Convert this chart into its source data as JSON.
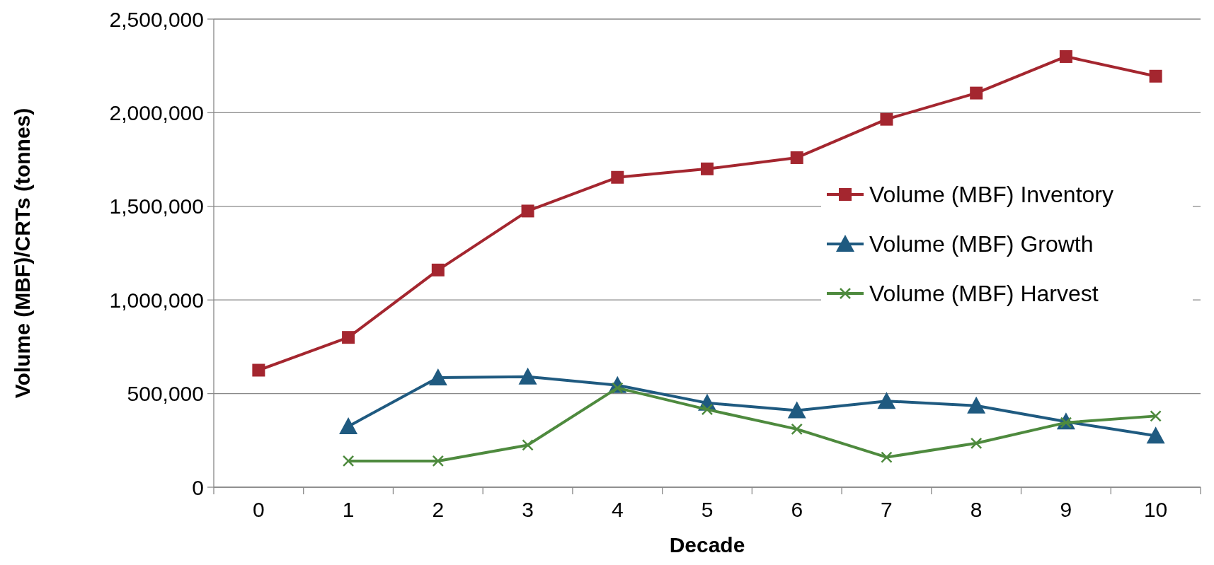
{
  "chart_data": {
    "type": "line",
    "xlabel": "Decade",
    "ylabel": "Volume (MBF)/CRTs (tonnes)",
    "categories": [
      "0",
      "1",
      "2",
      "3",
      "4",
      "5",
      "6",
      "7",
      "8",
      "9",
      "10"
    ],
    "ylim": [
      0,
      2500000
    ],
    "yticks": [
      {
        "value": 0,
        "label": "0"
      },
      {
        "value": 500000,
        "label": "500,000"
      },
      {
        "value": 1000000,
        "label": "1,000,000"
      },
      {
        "value": 1500000,
        "label": "1,500,000"
      },
      {
        "value": 2000000,
        "label": "2,000,000"
      },
      {
        "value": 2500000,
        "label": "2,500,000"
      }
    ],
    "grid": "y",
    "legend": "right",
    "series": [
      {
        "name": "Volume (MBF) Inventory",
        "color": "#a4262f",
        "marker": "square",
        "values": [
          625000,
          800000,
          1160000,
          1475000,
          1655000,
          1700000,
          1760000,
          1965000,
          2105000,
          2300000,
          2195000
        ]
      },
      {
        "name": "Volume (MBF) Growth",
        "color": "#1f5a80",
        "marker": "triangle",
        "values": [
          null,
          325000,
          585000,
          590000,
          545000,
          450000,
          410000,
          460000,
          435000,
          350000,
          275000
        ]
      },
      {
        "name": "Volume (MBF) Harvest",
        "color": "#4e8a3e",
        "marker": "cross",
        "values": [
          null,
          140000,
          140000,
          225000,
          530000,
          415000,
          310000,
          160000,
          235000,
          345000,
          380000
        ]
      }
    ]
  }
}
